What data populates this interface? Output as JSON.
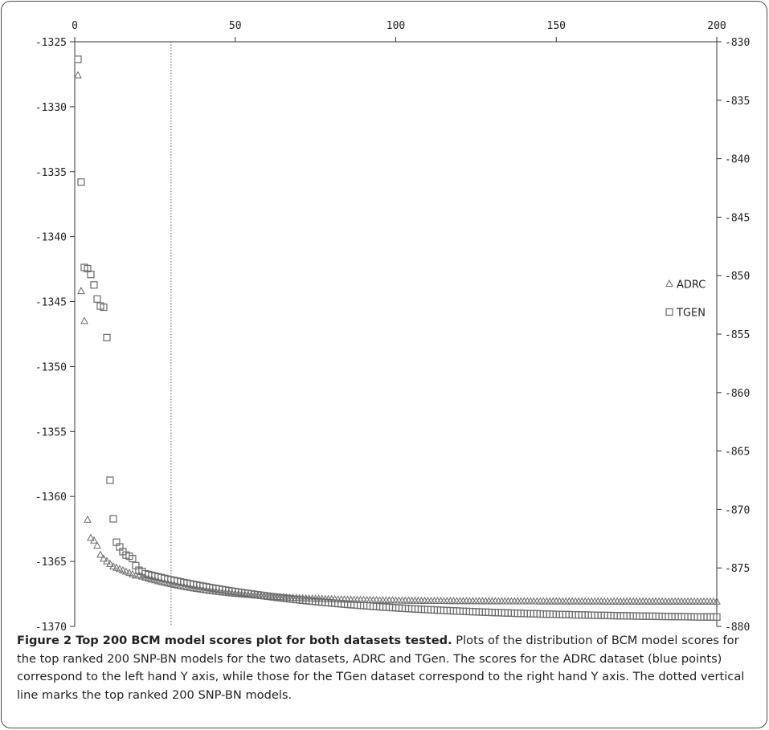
{
  "chart_data": {
    "type": "scatter",
    "x_ticks": [
      0,
      50,
      100,
      150,
      200
    ],
    "xlim": [
      0,
      200
    ],
    "y_left_ticks": [
      -1325,
      -1330,
      -1335,
      -1340,
      -1345,
      -1350,
      -1355,
      -1360,
      -1365,
      -1370
    ],
    "y_left_lim": [
      -1370,
      -1325
    ],
    "y_right_ticks": [
      -830,
      -835,
      -840,
      -845,
      -850,
      -855,
      -860,
      -865,
      -870,
      -875,
      -880
    ],
    "y_right_lim": [
      -880,
      -830
    ],
    "vline_x": 30,
    "legend_placement": "right",
    "series": [
      {
        "name": "ADRC",
        "marker": "triangle",
        "axis": "left",
        "head_values": [
          -1327.6,
          -1344.2,
          -1346.5,
          -1361.8,
          -1363.2,
          -1363.4,
          -1363.8,
          -1364.5,
          -1364.8,
          -1365.0,
          -1365.2,
          -1365.4,
          -1365.5,
          -1365.6,
          -1365.7,
          -1365.8,
          -1365.9,
          -1366.0,
          -1366.1
        ],
        "tail": {
          "from_x": 20,
          "start": -1366.1,
          "end": -1368.1,
          "shape": 0.04
        }
      },
      {
        "name": "TGEN",
        "marker": "square",
        "axis": "right",
        "head_values": [
          -831.5,
          -842.0,
          -849.3,
          -849.4,
          -849.9,
          -850.8,
          -852.0,
          -852.6,
          -852.7,
          -855.3,
          -867.5,
          -870.8,
          -872.8,
          -873.2,
          -873.6,
          -873.9,
          -874.0,
          -874.2,
          -874.8,
          -875.2,
          -875.3
        ],
        "tail": {
          "from_x": 22,
          "start": -875.5,
          "end": -879.2,
          "shape": 0.018
        }
      }
    ]
  },
  "caption": {
    "title": "Figure 2 Top 200 BCM model scores plot for both datasets tested.",
    "body": "Plots of the distribution of BCM model scores for the top ranked 200 SNP-BN models for the two datasets, ADRC and TGen. The scores for the ADRC dataset (blue points) correspond to the left hand Y axis, while those for the TGen dataset correspond to the right hand Y axis. The dotted vertical line marks the top ranked 200 SNP-BN models."
  },
  "colors": {
    "marker": "#6b6b6b",
    "axis": "#333333",
    "vline": "#555555"
  }
}
